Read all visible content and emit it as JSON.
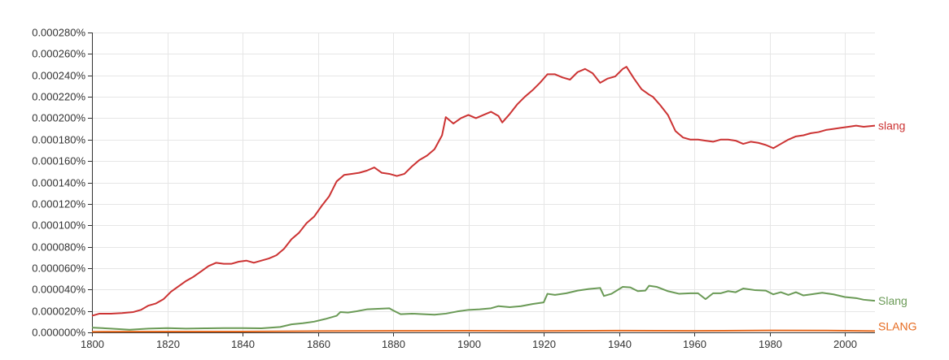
{
  "chart_data": {
    "type": "line",
    "title": "",
    "xlabel": "",
    "ylabel": "",
    "xlim": [
      1800,
      2008
    ],
    "ylim": [
      0,
      0.00028
    ],
    "grid": true,
    "x_ticks": [
      1800,
      1820,
      1840,
      1860,
      1880,
      1900,
      1920,
      1940,
      1960,
      1980,
      2000
    ],
    "x_tick_labels": [
      "1800",
      "1820",
      "1840",
      "1860",
      "1880",
      "1900",
      "1920",
      "1940",
      "1960",
      "1980",
      "2000"
    ],
    "y_ticks": [
      0,
      2e-05,
      4e-05,
      6e-05,
      8e-05,
      0.0001,
      0.00012,
      0.00014,
      0.00016,
      0.00018,
      0.0002,
      0.00022,
      0.00024,
      0.00026,
      0.00028
    ],
    "y_tick_labels": [
      "0.000000%",
      "0.000020%",
      "0.000040%",
      "0.000060%",
      "0.000080%",
      "0.000100%",
      "0.000120%",
      "0.000140%",
      "0.000160%",
      "0.000180%",
      "0.000200%",
      "0.000220%",
      "0.000240%",
      "0.000260%",
      "0.000280%"
    ],
    "series": [
      {
        "name": "slang",
        "color": "#cc3333",
        "points": [
          [
            1800,
            1.55e-05
          ],
          [
            1802,
            1.75e-05
          ],
          [
            1805,
            1.75e-05
          ],
          [
            1808,
            1.8e-05
          ],
          [
            1811,
            1.9e-05
          ],
          [
            1813,
            2.1e-05
          ],
          [
            1815,
            2.5e-05
          ],
          [
            1817,
            2.7e-05
          ],
          [
            1819,
            3.1e-05
          ],
          [
            1821,
            3.8e-05
          ],
          [
            1823,
            4.3e-05
          ],
          [
            1825,
            4.8e-05
          ],
          [
            1827,
            5.2e-05
          ],
          [
            1829,
            5.7e-05
          ],
          [
            1831,
            6.2e-05
          ],
          [
            1833,
            6.5e-05
          ],
          [
            1835,
            6.4e-05
          ],
          [
            1837,
            6.4e-05
          ],
          [
            1839,
            6.6e-05
          ],
          [
            1841,
            6.7e-05
          ],
          [
            1843,
            6.5e-05
          ],
          [
            1845,
            6.7e-05
          ],
          [
            1847,
            6.9e-05
          ],
          [
            1849,
            7.2e-05
          ],
          [
            1851,
            7.8e-05
          ],
          [
            1853,
            8.7e-05
          ],
          [
            1855,
            9.3e-05
          ],
          [
            1857,
            0.000102
          ],
          [
            1859,
            0.000108
          ],
          [
            1861,
            0.000118
          ],
          [
            1863,
            0.000127
          ],
          [
            1865,
            0.000141
          ],
          [
            1867,
            0.000147
          ],
          [
            1869,
            0.000148
          ],
          [
            1871,
            0.000149
          ],
          [
            1873,
            0.000151
          ],
          [
            1875,
            0.000154
          ],
          [
            1877,
            0.000149
          ],
          [
            1879,
            0.000148
          ],
          [
            1881,
            0.000146
          ],
          [
            1883,
            0.000148
          ],
          [
            1885,
            0.000155
          ],
          [
            1887,
            0.000161
          ],
          [
            1889,
            0.000165
          ],
          [
            1891,
            0.000171
          ],
          [
            1893,
            0.000184
          ],
          [
            1894,
            0.000201
          ],
          [
            1896,
            0.000195
          ],
          [
            1898,
            0.0002
          ],
          [
            1900,
            0.000203
          ],
          [
            1902,
            0.0002
          ],
          [
            1904,
            0.000203
          ],
          [
            1906,
            0.000206
          ],
          [
            1908,
            0.000202
          ],
          [
            1909,
            0.000196
          ],
          [
            1911,
            0.000204
          ],
          [
            1913,
            0.000213
          ],
          [
            1915,
            0.00022
          ],
          [
            1917,
            0.000226
          ],
          [
            1919,
            0.000233
          ],
          [
            1921,
            0.000241
          ],
          [
            1923,
            0.000241
          ],
          [
            1925,
            0.000238
          ],
          [
            1927,
            0.000236
          ],
          [
            1929,
            0.000243
          ],
          [
            1931,
            0.000246
          ],
          [
            1933,
            0.000242
          ],
          [
            1935,
            0.000233
          ],
          [
            1937,
            0.000237
          ],
          [
            1939,
            0.000239
          ],
          [
            1941,
            0.000246
          ],
          [
            1942,
            0.000248
          ],
          [
            1944,
            0.000237
          ],
          [
            1946,
            0.000227
          ],
          [
            1948,
            0.000222
          ],
          [
            1949,
            0.00022
          ],
          [
            1951,
            0.000212
          ],
          [
            1953,
            0.000203
          ],
          [
            1955,
            0.000188
          ],
          [
            1957,
            0.000182
          ],
          [
            1959,
            0.00018
          ],
          [
            1961,
            0.00018
          ],
          [
            1963,
            0.000179
          ],
          [
            1965,
            0.000178
          ],
          [
            1967,
            0.00018
          ],
          [
            1969,
            0.00018
          ],
          [
            1971,
            0.000179
          ],
          [
            1973,
            0.000176
          ],
          [
            1975,
            0.000178
          ],
          [
            1977,
            0.000177
          ],
          [
            1979,
            0.000175
          ],
          [
            1981,
            0.000172
          ],
          [
            1983,
            0.000176
          ],
          [
            1985,
            0.00018
          ],
          [
            1987,
            0.000183
          ],
          [
            1989,
            0.000184
          ],
          [
            1991,
            0.000186
          ],
          [
            1993,
            0.000187
          ],
          [
            1995,
            0.000189
          ],
          [
            1997,
            0.00019
          ],
          [
            1999,
            0.000191
          ],
          [
            2001,
            0.000192
          ],
          [
            2003,
            0.000193
          ],
          [
            2005,
            0.000192
          ],
          [
            2008,
            0.000193
          ]
        ]
      },
      {
        "name": "Slang",
        "color": "#6a9a56",
        "points": [
          [
            1800,
            4.5e-06
          ],
          [
            1805,
            3.5e-06
          ],
          [
            1810,
            2.5e-06
          ],
          [
            1815,
            3.5e-06
          ],
          [
            1820,
            4e-06
          ],
          [
            1825,
            3.5e-06
          ],
          [
            1830,
            3.8e-06
          ],
          [
            1835,
            4e-06
          ],
          [
            1840,
            4e-06
          ],
          [
            1845,
            3.8e-06
          ],
          [
            1850,
            5e-06
          ],
          [
            1853,
            7.5e-06
          ],
          [
            1856,
            8.5e-06
          ],
          [
            1859,
            1e-05
          ],
          [
            1862,
            1.25e-05
          ],
          [
            1865,
            1.55e-05
          ],
          [
            1866,
            1.9e-05
          ],
          [
            1868,
            1.85e-05
          ],
          [
            1870,
            1.95e-05
          ],
          [
            1873,
            2.15e-05
          ],
          [
            1876,
            2.2e-05
          ],
          [
            1879,
            2.25e-05
          ],
          [
            1880,
            2.05e-05
          ],
          [
            1882,
            1.7e-05
          ],
          [
            1885,
            1.75e-05
          ],
          [
            1888,
            1.7e-05
          ],
          [
            1891,
            1.65e-05
          ],
          [
            1894,
            1.75e-05
          ],
          [
            1897,
            1.95e-05
          ],
          [
            1900,
            2.1e-05
          ],
          [
            1903,
            2.15e-05
          ],
          [
            1906,
            2.25e-05
          ],
          [
            1908,
            2.45e-05
          ],
          [
            1911,
            2.35e-05
          ],
          [
            1914,
            2.45e-05
          ],
          [
            1917,
            2.65e-05
          ],
          [
            1920,
            2.8e-05
          ],
          [
            1921,
            3.6e-05
          ],
          [
            1923,
            3.5e-05
          ],
          [
            1926,
            3.65e-05
          ],
          [
            1929,
            3.9e-05
          ],
          [
            1932,
            4.05e-05
          ],
          [
            1935,
            4.15e-05
          ],
          [
            1936,
            3.4e-05
          ],
          [
            1938,
            3.6e-05
          ],
          [
            1941,
            4.25e-05
          ],
          [
            1943,
            4.2e-05
          ],
          [
            1945,
            3.85e-05
          ],
          [
            1947,
            3.9e-05
          ],
          [
            1948,
            4.35e-05
          ],
          [
            1950,
            4.25e-05
          ],
          [
            1953,
            3.85e-05
          ],
          [
            1956,
            3.6e-05
          ],
          [
            1959,
            3.65e-05
          ],
          [
            1961,
            3.65e-05
          ],
          [
            1963,
            3.1e-05
          ],
          [
            1965,
            3.65e-05
          ],
          [
            1967,
            3.65e-05
          ],
          [
            1969,
            3.85e-05
          ],
          [
            1971,
            3.75e-05
          ],
          [
            1973,
            4.1e-05
          ],
          [
            1976,
            3.95e-05
          ],
          [
            1979,
            3.9e-05
          ],
          [
            1981,
            3.55e-05
          ],
          [
            1983,
            3.75e-05
          ],
          [
            1985,
            3.5e-05
          ],
          [
            1987,
            3.75e-05
          ],
          [
            1989,
            3.45e-05
          ],
          [
            1991,
            3.55e-05
          ],
          [
            1994,
            3.7e-05
          ],
          [
            1997,
            3.55e-05
          ],
          [
            2000,
            3.3e-05
          ],
          [
            2003,
            3.2e-05
          ],
          [
            2005,
            3.05e-05
          ],
          [
            2008,
            2.95e-05
          ]
        ]
      },
      {
        "name": "SLANG",
        "color": "#e66a1f",
        "points": [
          [
            1800,
            6e-07
          ],
          [
            1820,
            8e-07
          ],
          [
            1840,
            8e-07
          ],
          [
            1860,
            1.2e-06
          ],
          [
            1880,
            1.4e-06
          ],
          [
            1900,
            1.5e-06
          ],
          [
            1920,
            1.3e-06
          ],
          [
            1940,
            1.6e-06
          ],
          [
            1960,
            1.4e-06
          ],
          [
            1980,
            1.8e-06
          ],
          [
            1995,
            1.7e-06
          ],
          [
            2008,
            1.2e-06
          ]
        ]
      }
    ]
  }
}
